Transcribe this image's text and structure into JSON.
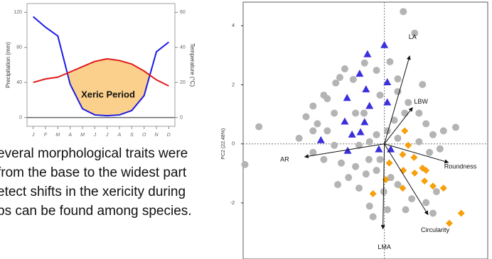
{
  "chart_data": [
    {
      "type": "line",
      "x": [
        "J",
        "F",
        "M",
        "A",
        "M",
        "J",
        "J",
        "A",
        "S",
        "O",
        "N",
        "D"
      ],
      "ylabel": "Precipitation (mm)",
      "y2label": "Temperature (°C)",
      "ylim": [
        -10,
        130
      ],
      "yticks": [
        0,
        40,
        80,
        120
      ],
      "y2lim": [
        -5,
        65
      ],
      "y2ticks": [
        0,
        20,
        40,
        60
      ],
      "hlines": [
        0
      ],
      "annotation": "Xeric Period",
      "fill_color": "#fbd08c",
      "series": [
        {
          "color": "#1a1ae6",
          "values": [
            115,
            103,
            93,
            38,
            10,
            3,
            2,
            3,
            8,
            25,
            75,
            86
          ]
        },
        {
          "color": "#e01a1a",
          "axis": "y2",
          "values": [
            20,
            22,
            23,
            26,
            29,
            32,
            33.5,
            32.5,
            30.5,
            26.5,
            21.5,
            18
          ]
        }
      ]
    },
    {
      "type": "scatter",
      "ylabel": "PC2 (22.48%)",
      "xlim": [
        -4.85,
        3.55
      ],
      "ylim": [
        -3.9,
        4.8
      ],
      "yticks": [
        -2,
        0,
        2,
        4
      ],
      "hlines": [
        0
      ],
      "vlines": [
        0
      ],
      "series": [
        {
          "color": "#b4b4b4",
          "marker": "circle",
          "x": [
            0.65,
            1.04,
            -4.31,
            -4.79,
            2.45,
            -0.68,
            -1.36,
            -0.27,
            -1.07,
            -1.67,
            -2.08,
            -2.45,
            -2.69,
            -2.3,
            -1.96,
            -1.72,
            -0.99,
            -0.15,
            0.46,
            0.82,
            1.19,
            1.43,
            1.67,
            2.03,
            1.91,
            1.55,
            1.19,
            0.46,
            -0.27,
            -0.51,
            -0.87,
            -1.72,
            -2.45,
            -2.08,
            -1.48,
            -0.99,
            -0.63,
            -0.27,
            0.22,
            0.46,
            -0.02,
            -0.51,
            -0.39,
            0.1,
            0.94,
            1.43,
            1.79,
            -0.87,
            -1.23,
            -1.6,
            -0.7,
            0.34,
            0.7,
            0.1,
            -1.96,
            -2.45,
            -2.93,
            0.46,
            0.19,
            1.31,
            -1.53,
            -0.53,
            -0.15,
            0.73,
            1.67
          ],
          "y": [
            4.48,
            3.75,
            0.58,
            -0.7,
            0.56,
            2.74,
            2.54,
            2.49,
            2.18,
            2.06,
            1.65,
            1.28,
            0.92,
            0.68,
            0.44,
            1.04,
            1.04,
            1.65,
            1.77,
            1.4,
            1.04,
            0.68,
            0.31,
            0.44,
            -0.17,
            -0.29,
            0.07,
            0.19,
            0.31,
            0.07,
            -0.05,
            -0.05,
            -0.29,
            -0.53,
            -0.65,
            -0.77,
            -1.02,
            -0.9,
            -1.14,
            -1.38,
            -1.62,
            -2.11,
            -2.47,
            -2.23,
            -1.86,
            -1.99,
            -1.62,
            -1.5,
            -1.14,
            -1.38,
            1.04,
            0.8,
            1.04,
            0.44,
            1.53,
            0.44,
            0.19,
            2.2,
            2.78,
            2.01,
            2.25,
            -0.53,
            -0.53,
            -2.23,
            -2.35
          ]
        },
        {
          "color": "#3b2fdc",
          "marker": "triangle",
          "x": [
            -0.58,
            0.0,
            -0.85,
            -0.63,
            0.1,
            -1.28,
            -0.51,
            0.1,
            -1.36,
            -0.68,
            -0.82,
            -1.11,
            -2.18,
            -1.26,
            -0.19,
            0.22
          ],
          "y": [
            3.03,
            3.34,
            2.37,
            1.84,
            2.08,
            1.55,
            1.28,
            1.4,
            0.75,
            0.73,
            0.39,
            0.31,
            0.12,
            -0.24,
            -0.19,
            -0.19
          ]
        },
        {
          "color": "#f5a00c",
          "marker": "diamond",
          "x": [
            0.7,
            0.82,
            0.63,
            1.02,
            0.17,
            0.65,
            1.31,
            1.04,
            1.43,
            0.05,
            1.38,
            -0.39,
            0.63,
            1.67,
            2.03,
            2.64,
            2.23
          ],
          "y": [
            0.44,
            -0.05,
            -0.36,
            -0.46,
            -0.65,
            -0.9,
            -0.82,
            -0.99,
            -0.9,
            -1.21,
            -1.26,
            -1.69,
            -1.5,
            -1.43,
            -1.5,
            -2.35,
            -2.69
          ]
        }
      ],
      "loadings": [
        {
          "name": "LA",
          "x": 0.87,
          "y": 2.98
        },
        {
          "name": "LBW",
          "x": 0.97,
          "y": 1.23
        },
        {
          "name": "AR",
          "x": -2.74,
          "y": -0.44
        },
        {
          "name": "Roundness",
          "x": 2.2,
          "y": -0.63
        },
        {
          "name": "Circularity",
          "x": 1.5,
          "y": -2.4
        },
        {
          "name": "LMA",
          "x": -0.05,
          "y": -2.88
        }
      ]
    }
  ],
  "text": {
    "lines": [
      "everal morphological traits were",
      "from the base to the widest part",
      "etect shifts in the xericity during",
      "ps can be found among species."
    ]
  }
}
